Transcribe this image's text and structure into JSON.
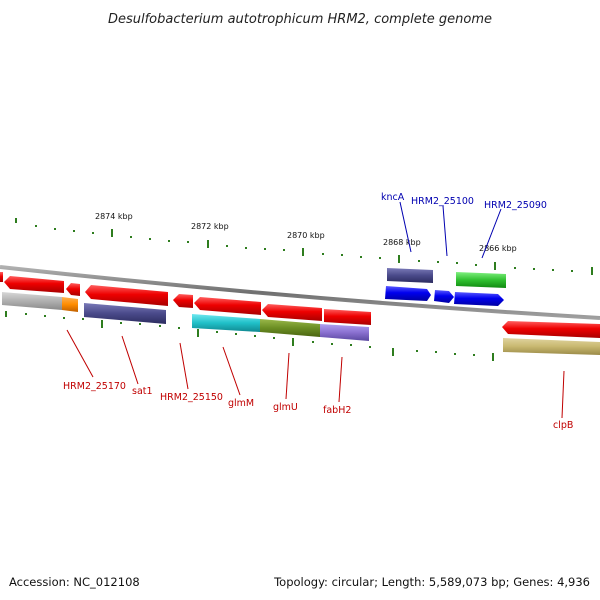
{
  "header": {
    "title": "Desulfobacterium autotrophicum HRM2, complete genome"
  },
  "scale_labels": [
    "2874 kbp",
    "2872 kbp",
    "2870 kbp",
    "2868 kbp",
    "2866 kbp"
  ],
  "forward_gene_labels": [
    "kncA",
    "HRM2_25100",
    "HRM2_25090"
  ],
  "reverse_gene_labels": [
    "HRM2_25170",
    "sat1",
    "HRM2_25150",
    "glmM",
    "glmU",
    "fabH2",
    "clpB"
  ],
  "footer": {
    "accession": "Accession: NC_012108",
    "summary": "Topology: circular; Length: 5,589,073 bp; Genes: 4,936"
  },
  "colors": {
    "backbone": "#808080",
    "ticks": "#2e7d1e",
    "cds_reverse": "#ee0000",
    "cds_forward": "#0000ee",
    "label_reverse": "#c00000",
    "label_forward": "#0000b0",
    "cog_gray": "#b0b0b0",
    "cog_orange": "#ff8c00",
    "cog_slate": "#4a4a8a",
    "cog_cyan": "#20c0c8",
    "cog_olive": "#6b8e23",
    "cog_lavender": "#8a70d0",
    "cog_green": "#30c030",
    "cog_khaki": "#c8b870"
  }
}
